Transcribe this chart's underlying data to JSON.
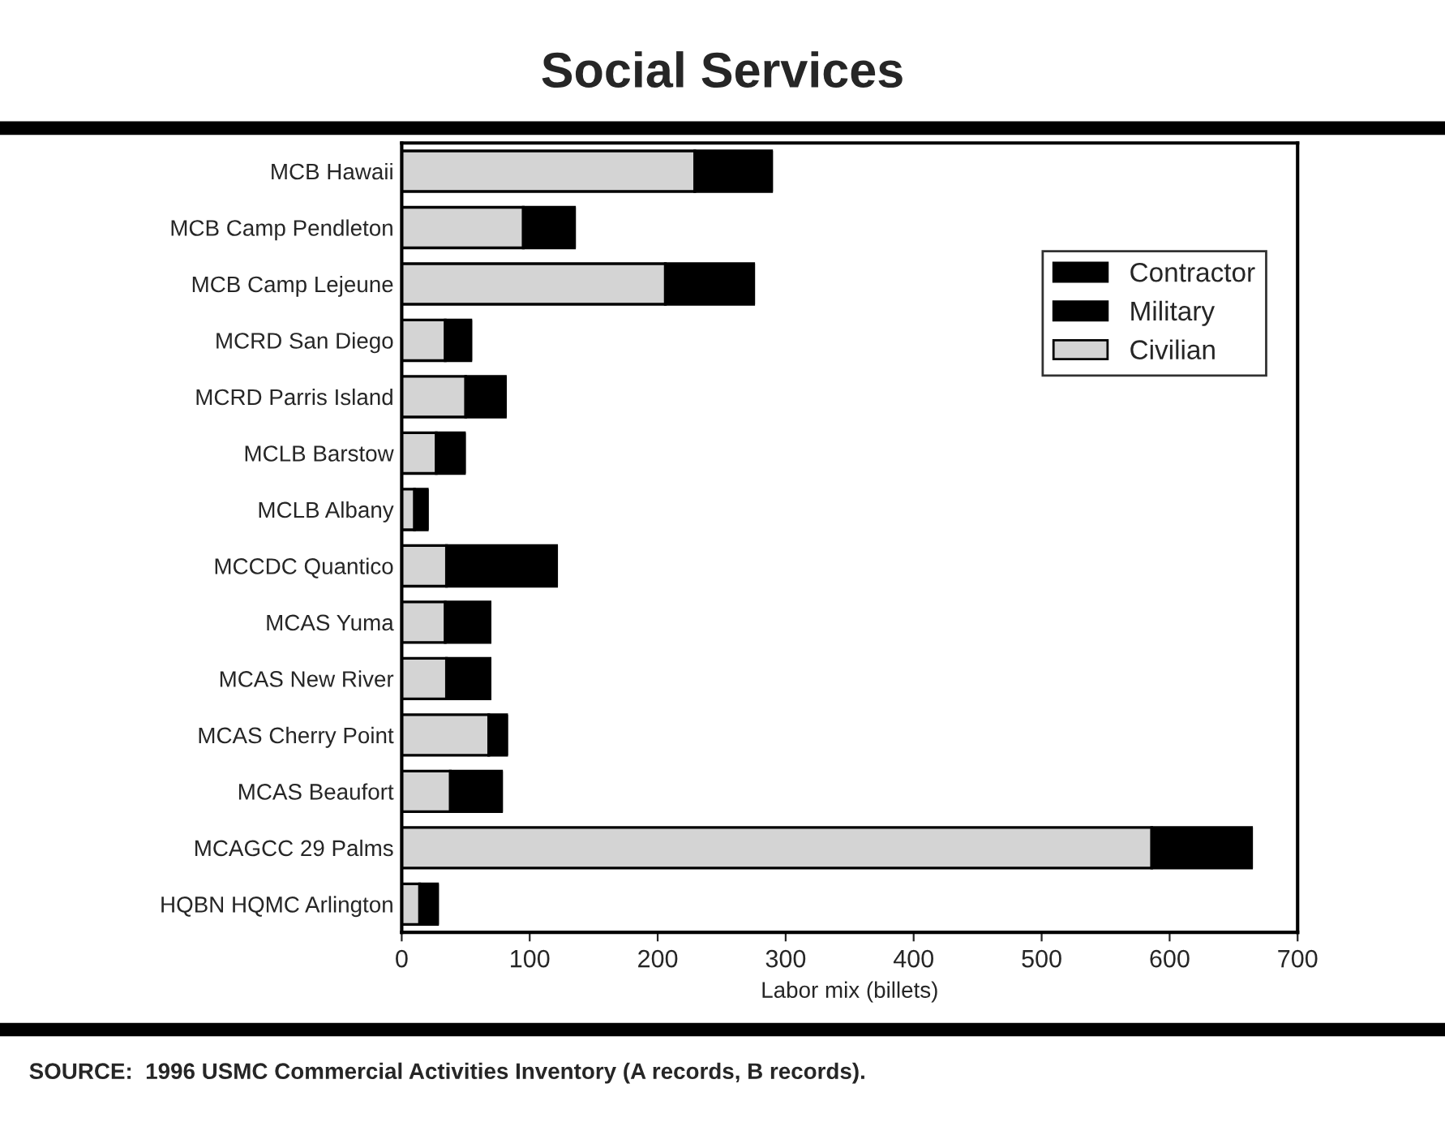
{
  "chart_data": {
    "type": "bar",
    "orientation": "horizontal",
    "stacked": true,
    "title": "Social Services",
    "xlabel": "Labor mix (billets)",
    "categories": [
      "MCB Hawaii",
      "MCB Camp Pendleton",
      "MCB Camp Lejeune",
      "MCRD San Diego",
      "MCRD Parris Island",
      "MCLB Barstow",
      "MCLB Albany",
      "MCCDC Quantico",
      "MCAS Yuma",
      "MCAS New River",
      "MCAS Cherry Point",
      "MCAS Beaufort",
      "MCAGCC 29 Palms",
      "HQBN HQMC Arlington"
    ],
    "series": [
      {
        "name": "Civilian",
        "color": "#d4d4d4",
        "values": [
          229,
          95,
          206,
          34,
          50,
          27,
          10,
          35,
          34,
          35,
          68,
          38,
          586,
          14
        ]
      },
      {
        "name": "Military",
        "color": "#000000",
        "values": [
          60,
          40,
          69,
          20,
          31,
          22,
          10,
          86,
          35,
          34,
          14,
          40,
          78,
          14
        ]
      },
      {
        "name": "Contractor",
        "color": "#000000",
        "values": [
          0,
          0,
          0,
          0,
          0,
          0,
          0,
          0,
          0,
          0,
          0,
          0,
          0,
          0
        ]
      }
    ],
    "xlim": [
      0,
      700
    ],
    "xticks": [
      0,
      100,
      200,
      300,
      400,
      500,
      600,
      700
    ],
    "grid": false,
    "legend": "top right",
    "annotations": [
      "SOURCE:  1996 USMC Commercial Activities Inventory (A records, B records)."
    ]
  }
}
